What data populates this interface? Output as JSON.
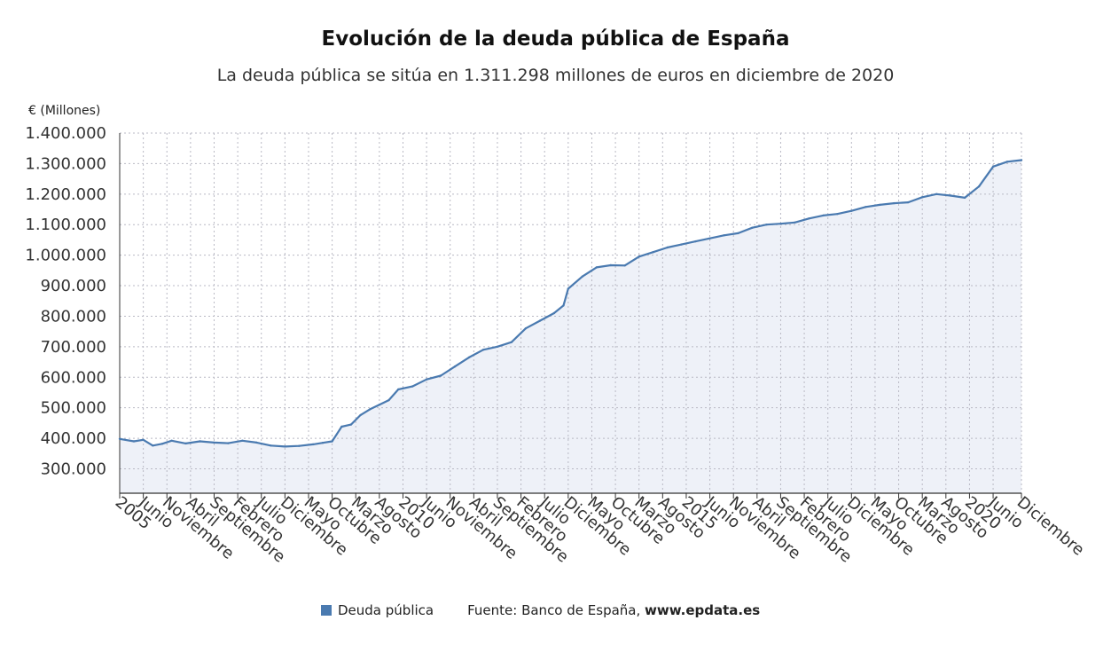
{
  "title": "Evolución de la deuda pública de España",
  "subtitle": "La deuda pública se sitúa en 1.311.298 millones de euros en diciembre de 2020",
  "unit_label": "€ (Millones)",
  "legend": {
    "series_label": "Deuda pública",
    "swatch_color": "#4a7ab0"
  },
  "source": {
    "prefix": "Fuente: Banco de España, ",
    "site": "www.epdata.es"
  },
  "colors": {
    "line": "#4a7ab0",
    "area": "#eef1f8",
    "grid": "#b9b9c4",
    "axis": "#333333"
  },
  "chart_data": {
    "type": "area",
    "title": "Evolución de la deuda pública de España",
    "subtitle": "La deuda pública se sitúa en 1.311.298 millones de euros en diciembre de 2020",
    "ylabel": "€ (Millones)",
    "ylim": [
      220000,
      1400000
    ],
    "yticks": [
      {
        "value": 300000,
        "label": "300.000"
      },
      {
        "value": 400000,
        "label": "400.000"
      },
      {
        "value": 500000,
        "label": "500.000"
      },
      {
        "value": 600000,
        "label": "600.000"
      },
      {
        "value": 700000,
        "label": "700.000"
      },
      {
        "value": 800000,
        "label": "800.000"
      },
      {
        "value": 900000,
        "label": "900.000"
      },
      {
        "value": 1000000,
        "label": "1.000.000"
      },
      {
        "value": 1100000,
        "label": "1.100.000"
      },
      {
        "value": 1200000,
        "label": "1.200.000"
      },
      {
        "value": 1300000,
        "label": "1.300.000"
      },
      {
        "value": 1400000,
        "label": "1.400.000"
      }
    ],
    "x_range": [
      "2005-01",
      "2020-12"
    ],
    "xticks": [
      {
        "x": "2005-01",
        "label": "2005"
      },
      {
        "x": "2005-06",
        "label": "Junio"
      },
      {
        "x": "2005-11",
        "label": "Noviembre"
      },
      {
        "x": "2006-04",
        "label": "Abril"
      },
      {
        "x": "2006-09",
        "label": "Septiembre"
      },
      {
        "x": "2007-02",
        "label": "Febrero"
      },
      {
        "x": "2007-07",
        "label": "Julio"
      },
      {
        "x": "2007-12",
        "label": "Diciembre"
      },
      {
        "x": "2008-05",
        "label": "Mayo"
      },
      {
        "x": "2008-10",
        "label": "Octubre"
      },
      {
        "x": "2009-03",
        "label": "Marzo"
      },
      {
        "x": "2009-08",
        "label": "Agosto"
      },
      {
        "x": "2010-01",
        "label": "2010"
      },
      {
        "x": "2010-06",
        "label": "Junio"
      },
      {
        "x": "2010-11",
        "label": "Noviembre"
      },
      {
        "x": "2011-04",
        "label": "Abril"
      },
      {
        "x": "2011-09",
        "label": "Septiembre"
      },
      {
        "x": "2012-02",
        "label": "Febrero"
      },
      {
        "x": "2012-07",
        "label": "Julio"
      },
      {
        "x": "2012-12",
        "label": "Diciembre"
      },
      {
        "x": "2013-05",
        "label": "Mayo"
      },
      {
        "x": "2013-10",
        "label": "Octubre"
      },
      {
        "x": "2014-03",
        "label": "Marzo"
      },
      {
        "x": "2014-08",
        "label": "Agosto"
      },
      {
        "x": "2015-01",
        "label": "2015"
      },
      {
        "x": "2015-06",
        "label": "Junio"
      },
      {
        "x": "2015-11",
        "label": "Noviembre"
      },
      {
        "x": "2016-04",
        "label": "Abril"
      },
      {
        "x": "2016-09",
        "label": "Septiembre"
      },
      {
        "x": "2017-02",
        "label": "Febrero"
      },
      {
        "x": "2017-07",
        "label": "Julio"
      },
      {
        "x": "2017-12",
        "label": "Diciembre"
      },
      {
        "x": "2018-05",
        "label": "Mayo"
      },
      {
        "x": "2018-10",
        "label": "Octubre"
      },
      {
        "x": "2019-03",
        "label": "Marzo"
      },
      {
        "x": "2019-08",
        "label": "Agosto"
      },
      {
        "x": "2020-01",
        "label": "2020"
      },
      {
        "x": "2020-06",
        "label": "Junio"
      },
      {
        "x": "2020-12",
        "label": "Diciembre"
      }
    ],
    "grid": true,
    "legend_position": "bottom",
    "series": [
      {
        "name": "Deuda pública",
        "points": [
          [
            "2005-01",
            398000
          ],
          [
            "2005-04",
            390000
          ],
          [
            "2005-06",
            395000
          ],
          [
            "2005-08",
            376000
          ],
          [
            "2005-10",
            382000
          ],
          [
            "2005-12",
            392000
          ],
          [
            "2006-03",
            383000
          ],
          [
            "2006-06",
            390000
          ],
          [
            "2006-09",
            386000
          ],
          [
            "2006-12",
            384000
          ],
          [
            "2007-03",
            392000
          ],
          [
            "2007-06",
            386000
          ],
          [
            "2007-09",
            376000
          ],
          [
            "2007-12",
            373000
          ],
          [
            "2008-03",
            375000
          ],
          [
            "2008-06",
            380000
          ],
          [
            "2008-08",
            385000
          ],
          [
            "2008-10",
            390000
          ],
          [
            "2008-12",
            438000
          ],
          [
            "2009-02",
            445000
          ],
          [
            "2009-04",
            476000
          ],
          [
            "2009-06",
            495000
          ],
          [
            "2009-08",
            510000
          ],
          [
            "2009-10",
            525000
          ],
          [
            "2009-12",
            560000
          ],
          [
            "2010-03",
            570000
          ],
          [
            "2010-06",
            593000
          ],
          [
            "2010-09",
            605000
          ],
          [
            "2010-12",
            635000
          ],
          [
            "2011-03",
            665000
          ],
          [
            "2011-06",
            690000
          ],
          [
            "2011-09",
            700000
          ],
          [
            "2011-12",
            715000
          ],
          [
            "2012-03",
            760000
          ],
          [
            "2012-06",
            785000
          ],
          [
            "2012-09",
            810000
          ],
          [
            "2012-11",
            835000
          ],
          [
            "2012-12",
            890000
          ],
          [
            "2013-03",
            930000
          ],
          [
            "2013-06",
            960000
          ],
          [
            "2013-09",
            967000
          ],
          [
            "2013-12",
            966000
          ],
          [
            "2014-03",
            995000
          ],
          [
            "2014-06",
            1010000
          ],
          [
            "2014-09",
            1025000
          ],
          [
            "2014-12",
            1035000
          ],
          [
            "2015-03",
            1045000
          ],
          [
            "2015-06",
            1055000
          ],
          [
            "2015-09",
            1065000
          ],
          [
            "2015-12",
            1072000
          ],
          [
            "2016-03",
            1090000
          ],
          [
            "2016-06",
            1100000
          ],
          [
            "2016-09",
            1103000
          ],
          [
            "2016-12",
            1107000
          ],
          [
            "2017-03",
            1120000
          ],
          [
            "2017-06",
            1130000
          ],
          [
            "2017-09",
            1135000
          ],
          [
            "2017-12",
            1145000
          ],
          [
            "2018-03",
            1158000
          ],
          [
            "2018-06",
            1165000
          ],
          [
            "2018-09",
            1170000
          ],
          [
            "2018-12",
            1173000
          ],
          [
            "2019-03",
            1190000
          ],
          [
            "2019-06",
            1200000
          ],
          [
            "2019-09",
            1195000
          ],
          [
            "2019-12",
            1188000
          ],
          [
            "2020-03",
            1225000
          ],
          [
            "2020-06",
            1290000
          ],
          [
            "2020-09",
            1306000
          ],
          [
            "2020-12",
            1311298
          ]
        ]
      }
    ]
  }
}
